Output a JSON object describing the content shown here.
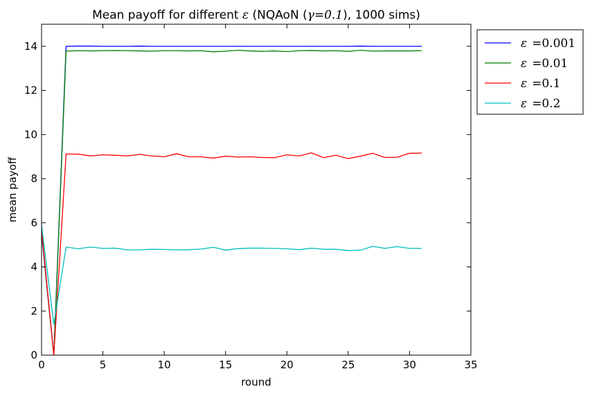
{
  "chart_data": {
    "type": "line",
    "title": {
      "prefix": "Mean payoff for different ",
      "eps": "ε",
      "mid": " (NQAoN (",
      "gamma": "γ=0.1",
      "suffix": "), 1000 sims)"
    },
    "xlabel": "round",
    "ylabel": "mean payoff",
    "xlim": [
      0,
      35
    ],
    "ylim": [
      0,
      15
    ],
    "xticks": [
      0,
      5,
      10,
      15,
      20,
      25,
      30,
      35
    ],
    "yticks": [
      0,
      2,
      4,
      6,
      8,
      10,
      12,
      14
    ],
    "grid": false,
    "legend_position": "outside-top-right",
    "x": [
      0,
      1,
      2,
      3,
      4,
      5,
      6,
      7,
      8,
      9,
      10,
      11,
      12,
      13,
      14,
      15,
      16,
      17,
      18,
      19,
      20,
      21,
      22,
      23,
      24,
      25,
      26,
      27,
      28,
      29,
      30,
      31
    ],
    "series": [
      {
        "name_eps": "ε",
        "name_value": "=0.001",
        "color": "#0000ff",
        "values": [
          5.5,
          0.0,
          14.0,
          14.01,
          14.01,
          14.0,
          14.0,
          14.0,
          14.01,
          14.0,
          14.0,
          14.0,
          14.0,
          14.0,
          14.0,
          14.0,
          14.0,
          14.0,
          14.0,
          14.0,
          14.0,
          14.0,
          14.0,
          14.0,
          14.0,
          14.0,
          14.01,
          14.0,
          14.0,
          14.0,
          14.0,
          14.0
        ]
      },
      {
        "name_eps": "ε",
        "name_value": "=0.01",
        "color": "#008000",
        "values": [
          5.6,
          0.0,
          13.78,
          13.8,
          13.79,
          13.8,
          13.81,
          13.8,
          13.79,
          13.78,
          13.8,
          13.8,
          13.79,
          13.8,
          13.75,
          13.78,
          13.82,
          13.79,
          13.77,
          13.79,
          13.76,
          13.8,
          13.81,
          13.79,
          13.8,
          13.77,
          13.82,
          13.78,
          13.79,
          13.79,
          13.79,
          13.8
        ]
      },
      {
        "name_eps": "ε",
        "name_value": "=0.1",
        "color": "#ff0000",
        "values": [
          5.7,
          0.0,
          9.12,
          9.11,
          9.03,
          9.08,
          9.06,
          9.03,
          9.1,
          9.03,
          8.99,
          9.13,
          8.99,
          8.99,
          8.93,
          9.02,
          8.98,
          8.99,
          8.96,
          8.95,
          9.08,
          9.03,
          9.17,
          8.95,
          9.06,
          8.91,
          9.02,
          9.15,
          8.96,
          8.97,
          9.15,
          9.16
        ]
      },
      {
        "name_eps": "ε",
        "name_value": "=0.2",
        "color": "#00bfbf",
        "values": [
          5.9,
          1.4,
          4.9,
          4.82,
          4.9,
          4.84,
          4.85,
          4.77,
          4.77,
          4.8,
          4.79,
          4.77,
          4.78,
          4.81,
          4.89,
          4.76,
          4.83,
          4.85,
          4.85,
          4.84,
          4.82,
          4.78,
          4.85,
          4.8,
          4.8,
          4.74,
          4.76,
          4.93,
          4.84,
          4.92,
          4.84,
          4.84
        ]
      }
    ]
  }
}
